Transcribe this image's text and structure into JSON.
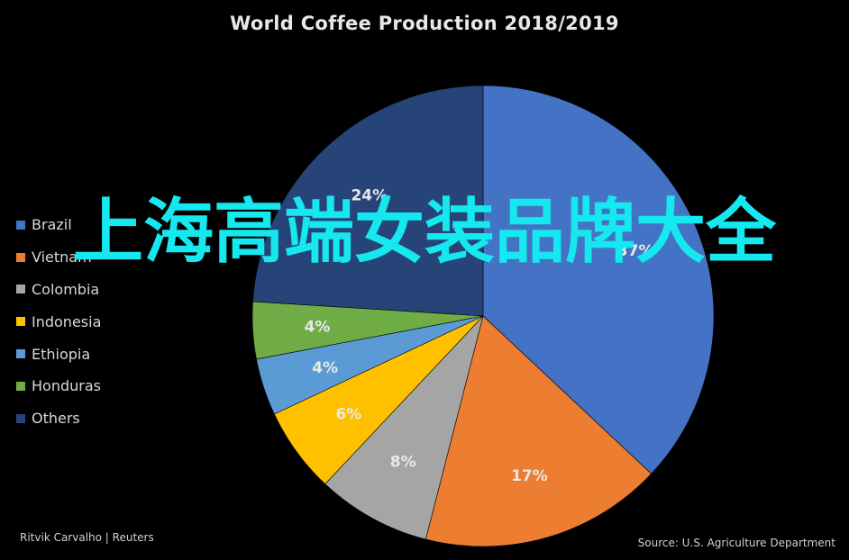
{
  "chart_data": {
    "type": "pie",
    "title": "World Coffee Production 2018/2019",
    "slices": [
      {
        "name": "Brazil",
        "value": 37,
        "label": "37%",
        "color": "#4472c4"
      },
      {
        "name": "Vietnam",
        "value": 17,
        "label": "17%",
        "color": "#ed7d31"
      },
      {
        "name": "Colombia",
        "value": 8,
        "label": "8%",
        "color": "#a5a5a5"
      },
      {
        "name": "Indonesia",
        "value": 6,
        "label": "6%",
        "color": "#ffc000"
      },
      {
        "name": "Ethiopia",
        "value": 4,
        "label": "4%",
        "color": "#5b9bd5"
      },
      {
        "name": "Honduras",
        "value": 4,
        "label": "4%",
        "color": "#70ad47"
      },
      {
        "name": "Others",
        "value": 24,
        "label": "24%",
        "color": "#264478"
      }
    ],
    "legend_position": "left"
  },
  "overlay_text": "上海高端女装品牌大全",
  "credit": "Ritvik Carvalho | Reuters",
  "source": "Source: U.S. Agriculture Department",
  "colors": {
    "background": "#000000",
    "overlay": "#15e8ee"
  }
}
